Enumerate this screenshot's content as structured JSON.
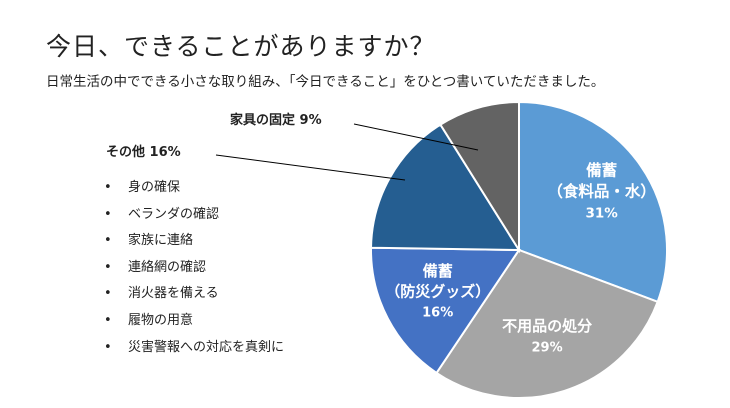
{
  "title": "今日、できることがありますか？",
  "subtitle": "日常生活の中でできる小さな取り組み、「今日できること」をひとつ書いていただきました。",
  "chart_data": {
    "type": "pie",
    "start_angle_deg": 0,
    "direction": "clockwise",
    "slices": [
      {
        "name_lines": [
          "備蓄",
          "（食料品・水）"
        ],
        "pct_label": "31%",
        "value": 31,
        "color": "#5b9bd5"
      },
      {
        "name_lines": [
          "不用品の処分"
        ],
        "pct_label": "29%",
        "value": 29,
        "color": "#a5a5a5"
      },
      {
        "name_lines": [
          "備蓄",
          "（防災グッズ）"
        ],
        "pct_label": "16%",
        "value": 16,
        "color": "#4472c4"
      },
      {
        "name_lines": [
          "その他"
        ],
        "pct_label": "16%",
        "value": 16,
        "color": "#255e91"
      },
      {
        "name_lines": [
          "家具の固定"
        ],
        "pct_label": "9%",
        "value": 9,
        "color": "#636363"
      }
    ],
    "callouts": {
      "other": "その他 16%",
      "furniture": "家具の固定 9%"
    },
    "other_items": [
      "身の確保",
      "ベランダの確認",
      "家族に連絡",
      "連絡網の確認",
      "消火器を備える",
      "履物の用意",
      "災害警報への対応を真剣に"
    ]
  }
}
